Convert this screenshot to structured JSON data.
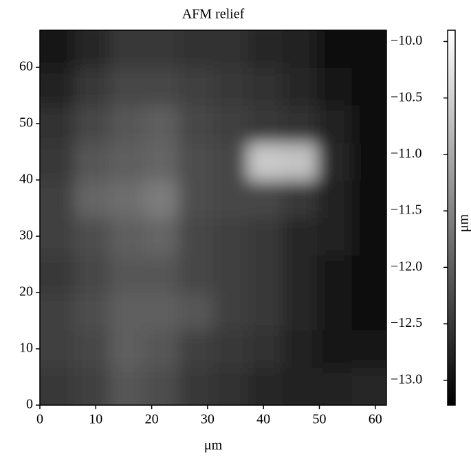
{
  "chart_data": {
    "type": "heatmap",
    "title": "AFM relief",
    "xlabel": "μm",
    "colorbar_label": "μm",
    "x": [
      3.1,
      9.3,
      15.5,
      21.7,
      27.9,
      34.1,
      40.3,
      46.5,
      52.7,
      58.9
    ],
    "y": [
      3.33,
      9.99,
      16.65,
      23.31,
      29.97,
      36.63,
      43.29,
      49.95,
      56.61,
      63.27
    ],
    "z": [
      [
        -12.5,
        -12.4,
        -12.1,
        -12.2,
        -12.5,
        -12.6,
        -12.7,
        -12.8,
        -12.8,
        -12.7
      ],
      [
        -12.4,
        -12.3,
        -12.0,
        -12.1,
        -12.4,
        -12.5,
        -12.6,
        -12.8,
        -12.9,
        -12.9
      ],
      [
        -12.4,
        -12.2,
        -12.0,
        -12.0,
        -12.1,
        -12.4,
        -12.5,
        -12.7,
        -12.9,
        -13.0
      ],
      [
        -12.5,
        -12.3,
        -12.1,
        -12.1,
        -12.3,
        -12.4,
        -12.5,
        -12.7,
        -12.9,
        -13.0
      ],
      [
        -12.4,
        -12.2,
        -12.0,
        -11.9,
        -12.3,
        -12.4,
        -12.5,
        -12.7,
        -12.8,
        -13.0
      ],
      [
        -12.4,
        -11.9,
        -11.8,
        -11.6,
        -12.2,
        -12.3,
        -12.3,
        -12.5,
        -12.8,
        -13.0
      ],
      [
        -12.5,
        -12.1,
        -12.0,
        -11.9,
        -12.2,
        -12.3,
        -10.6,
        -10.7,
        -12.7,
        -13.0
      ],
      [
        -12.6,
        -12.3,
        -12.1,
        -12.0,
        -12.3,
        -12.4,
        -12.5,
        -12.6,
        -12.8,
        -13.0
      ],
      [
        -12.8,
        -12.5,
        -12.3,
        -12.3,
        -12.4,
        -12.5,
        -12.6,
        -12.7,
        -12.9,
        -13.1
      ],
      [
        -12.9,
        -12.7,
        -12.5,
        -12.5,
        -12.6,
        -12.6,
        -12.7,
        -12.8,
        -13.0,
        -13.1
      ]
    ],
    "xlim": [
      0,
      62
    ],
    "ylim": [
      0,
      66.6
    ],
    "xticks": [
      0,
      10,
      20,
      30,
      40,
      50,
      60
    ],
    "yticks": [
      0,
      10,
      20,
      30,
      40,
      50,
      60
    ],
    "clim": [
      -13.22,
      -9.9
    ],
    "cticks": [
      {
        "value": -10.0,
        "label": "−10.0"
      },
      {
        "value": -10.5,
        "label": "−10.5"
      },
      {
        "value": -11.0,
        "label": "−11.0"
      },
      {
        "value": -11.5,
        "label": "−11.5"
      },
      {
        "value": -12.0,
        "label": "−12.0"
      },
      {
        "value": -12.5,
        "label": "−12.5"
      },
      {
        "value": -13.0,
        "label": "−13.0"
      }
    ],
    "colormap": "gray"
  }
}
